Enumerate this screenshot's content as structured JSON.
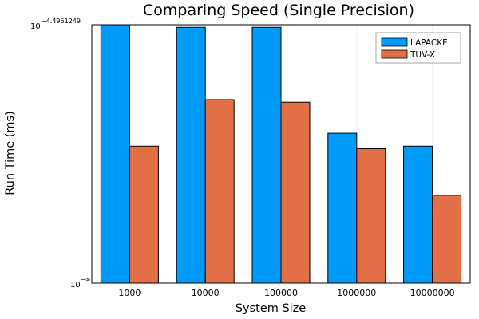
{
  "chart_data": {
    "type": "bar",
    "title": "Comparing Speed (Single Precision)",
    "xlabel": "System Size",
    "ylabel": "Run Time (ms)",
    "y_scale": "log",
    "y_tick_labels": {
      "top": {
        "base": "10",
        "exp": "−4.4961249"
      },
      "bottom": {
        "base": "10",
        "exp": "−∞"
      }
    },
    "categories": [
      "1000",
      "10000",
      "100000",
      "1000000",
      "10000000"
    ],
    "series": [
      {
        "name": "LAPACKE",
        "color": "#009af9",
        "values": [
          1.0,
          0.99,
          0.99,
          0.58,
          0.53
        ]
      },
      {
        "name": "TUV-X",
        "color": "#e26f46",
        "values": [
          0.53,
          0.71,
          0.7,
          0.52,
          0.34
        ]
      }
    ],
    "ylim": [
      0,
      1
    ],
    "legend_position": "top-right",
    "grid": true
  }
}
